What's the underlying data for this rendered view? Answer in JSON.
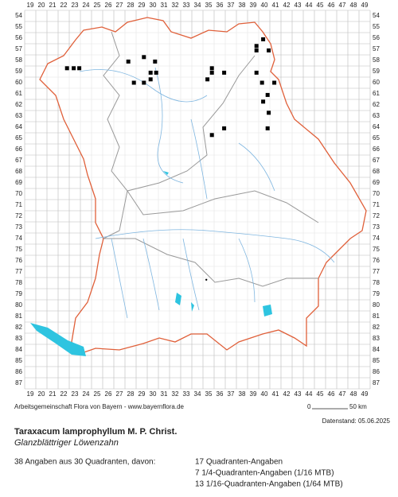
{
  "x_labels": [
    19,
    20,
    21,
    22,
    23,
    24,
    25,
    26,
    27,
    28,
    29,
    30,
    31,
    32,
    33,
    34,
    35,
    36,
    37,
    38,
    39,
    40,
    41,
    42,
    43,
    44,
    45,
    46,
    47,
    48,
    49
  ],
  "y_labels": [
    54,
    55,
    56,
    57,
    58,
    59,
    60,
    61,
    62,
    63,
    64,
    65,
    66,
    67,
    68,
    69,
    70,
    71,
    72,
    73,
    74,
    75,
    76,
    77,
    78,
    79,
    80,
    81,
    82,
    83,
    84,
    85,
    86,
    87
  ],
  "occurrences": [
    [
      39.9,
      56.1
    ],
    [
      39.3,
      56.7
    ],
    [
      39.3,
      57.1
    ],
    [
      40.4,
      57.1
    ],
    [
      27.8,
      58.1
    ],
    [
      29.2,
      57.7
    ],
    [
      30.2,
      58.1
    ],
    [
      22.3,
      58.7
    ],
    [
      22.9,
      58.7
    ],
    [
      23.4,
      58.7
    ],
    [
      29.8,
      59.1
    ],
    [
      30.3,
      59.1
    ],
    [
      35.3,
      58.7
    ],
    [
      35.3,
      59.1
    ],
    [
      36.4,
      59.1
    ],
    [
      34.9,
      59.7
    ],
    [
      39.3,
      59.1
    ],
    [
      39.8,
      60.0
    ],
    [
      40.9,
      60.0
    ],
    [
      28.3,
      60.0
    ],
    [
      29.2,
      60.0
    ],
    [
      29.8,
      59.7
    ],
    [
      40.3,
      61.1
    ],
    [
      39.9,
      61.7
    ],
    [
      40.4,
      62.7
    ],
    [
      36.4,
      64.1
    ],
    [
      40.3,
      64.1
    ],
    [
      35.3,
      64.7
    ]
  ],
  "point_records": [
    [
      34.8,
      77.7
    ]
  ],
  "credit": "Arbeitsgemeinschaft Flora von Bayern - www.bayernflora.de",
  "scale_start": "0",
  "scale_end": "50 km",
  "date": "Datenstand: 05.06.2025",
  "title": "Taraxacum lamprophyllum M. P. Christ.",
  "subtitle": "Glanzblättriger Löwenzahn",
  "summary": "38 Angaben aus 30 Quadranten, davon:",
  "counts": [
    "17 Quadranten-Angaben",
    "7 1/4-Quadranten-Angaben (1/16 MTB)",
    "13 1/16-Quadranten-Angaben (1/64 MTB)"
  ]
}
